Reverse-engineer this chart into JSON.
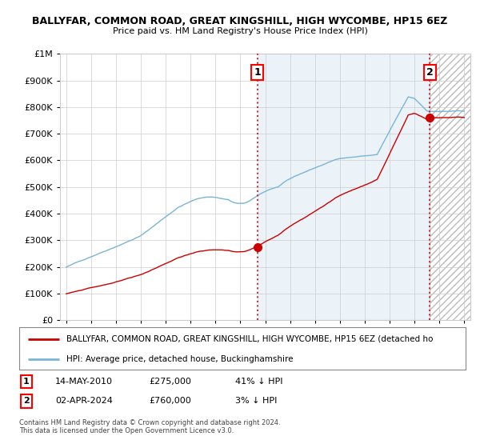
{
  "title1": "BALLYFAR, COMMON ROAD, GREAT KINGSHILL, HIGH WYCOMBE, HP15 6EZ",
  "title2": "Price paid vs. HM Land Registry's House Price Index (HPI)",
  "ylim": [
    0,
    1000000
  ],
  "yticks": [
    0,
    100000,
    200000,
    300000,
    400000,
    500000,
    600000,
    700000,
    800000,
    900000,
    1000000
  ],
  "xlim_left": 1994.5,
  "xlim_right": 2027.5,
  "sale1_x": 2010.37,
  "sale1_y": 275000,
  "sale2_x": 2024.25,
  "sale2_y": 760000,
  "hpi_color": "#7ab4d8",
  "price_color": "#cc0000",
  "vline_color": "#cc0000",
  "legend_price_label": "BALLYFAR, COMMON ROAD, GREAT KINGSHILL, HIGH WYCOMBE, HP15 6EZ (detached ho",
  "legend_hpi_label": "HPI: Average price, detached house, Buckinghamshire",
  "table_row1": [
    "1",
    "14-MAY-2010",
    "£275,000",
    "41% ↓ HPI"
  ],
  "table_row2": [
    "2",
    "02-APR-2024",
    "£760,000",
    "3% ↓ HPI"
  ],
  "footer": "Contains HM Land Registry data © Crown copyright and database right 2024.\nThis data is licensed under the Open Government Licence v3.0.",
  "bg_color": "#ffffff",
  "grid_color": "#cccccc",
  "shade_color": "#ddeeff"
}
